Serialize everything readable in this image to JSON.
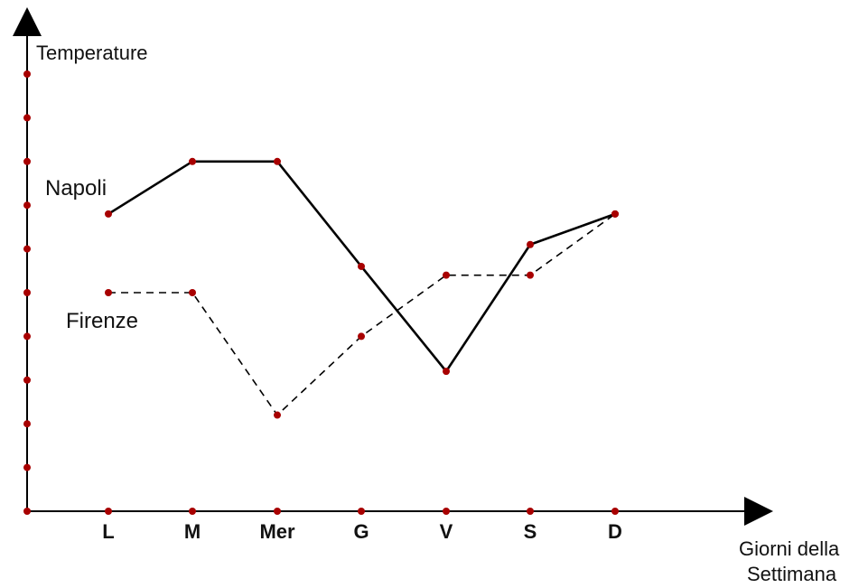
{
  "chart_data": {
    "type": "line",
    "ylabel": "Temperature",
    "xlabel_lines": [
      "Giorni della",
      "Settimana"
    ],
    "categories": [
      "L",
      "M",
      "Mer",
      "G",
      "V",
      "S",
      "D"
    ],
    "y_ticks": [
      1,
      2,
      3,
      4,
      5,
      6,
      7,
      8,
      9,
      10
    ],
    "ylim": [
      0,
      11
    ],
    "grid": false,
    "series": [
      {
        "name": "Napoli",
        "style": "solid",
        "values": [
          6.8,
          8.0,
          8.0,
          5.6,
          3.2,
          6.1,
          6.8
        ]
      },
      {
        "name": "Firenze",
        "style": "dashed",
        "values": [
          5.0,
          5.0,
          2.2,
          4.0,
          5.4,
          5.4,
          6.8
        ]
      }
    ],
    "colors": {
      "axis": "#000000",
      "marker": "#a80000",
      "line": "#000000"
    }
  }
}
